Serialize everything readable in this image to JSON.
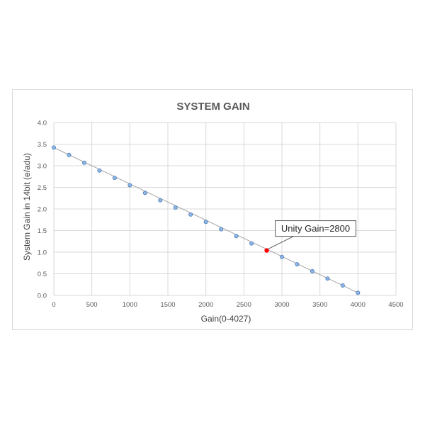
{
  "chart_data": {
    "type": "scatter",
    "title": "SYSTEM GAIN",
    "xlabel": "Gain(0-4027)",
    "ylabel": "System Gain in 14bit (e/adu)",
    "xlim": [
      0,
      4500
    ],
    "ylim": [
      0,
      4.0
    ],
    "x_ticks": [
      "0",
      "500",
      "1000",
      "1500",
      "2000",
      "2500",
      "3000",
      "3500",
      "4000",
      "4500"
    ],
    "y_ticks": [
      "0.0",
      "0.5",
      "1.0",
      "1.5",
      "2.0",
      "2.5",
      "3.0",
      "3.5",
      "4.0"
    ],
    "grid": true,
    "trendline": true,
    "series": [
      {
        "x": [
          0,
          200,
          400,
          600,
          800,
          1000,
          1200,
          1400,
          1600,
          1800,
          2000,
          2200,
          2400,
          2600,
          3000,
          3200,
          3400,
          3600,
          3800,
          4000
        ],
        "y": [
          3.42,
          3.25,
          3.07,
          2.89,
          2.72,
          2.55,
          2.37,
          2.2,
          2.03,
          1.87,
          1.7,
          1.53,
          1.37,
          1.2,
          0.89,
          0.72,
          0.56,
          0.39,
          0.23,
          0.06
        ],
        "color": "#8eb4e3",
        "marker_edge": "#4f81bd"
      }
    ],
    "highlight": {
      "x": 2800,
      "y": 1.04,
      "color": "#ff0000"
    },
    "annotation": {
      "text": "Unity Gain=2800"
    },
    "line_color": "#a6a6a6",
    "grid_color": "#d9d9d9"
  }
}
